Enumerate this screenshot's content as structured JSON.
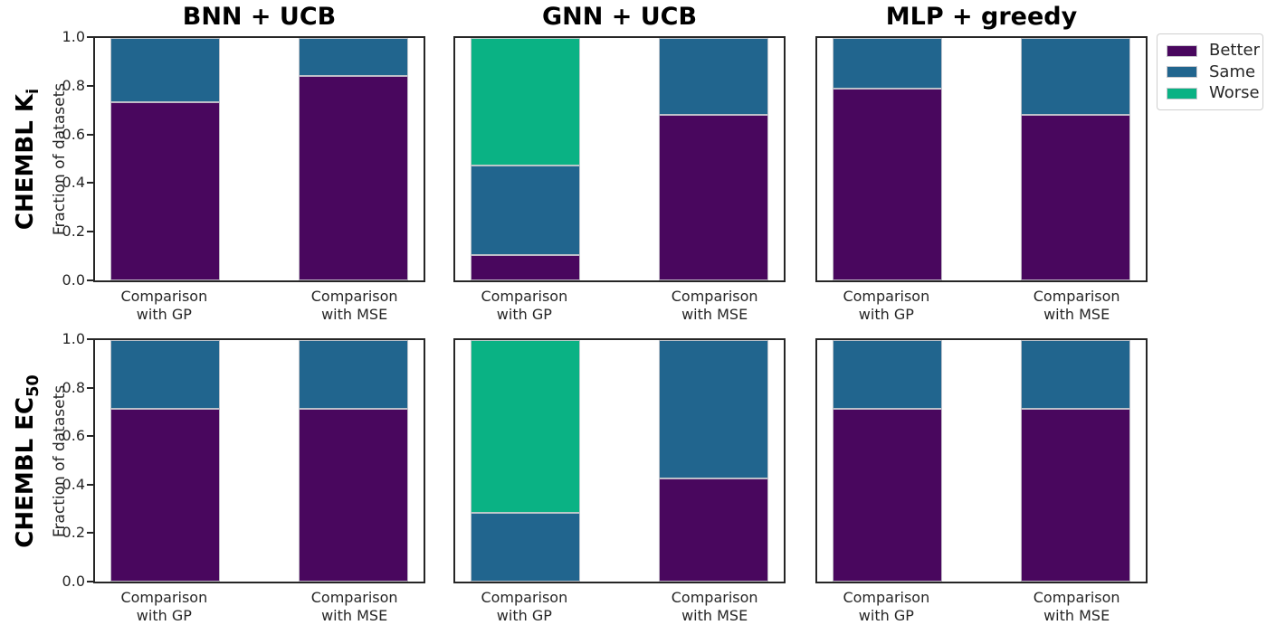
{
  "figure": {
    "background": "#ffffff",
    "axis_color": "#262626",
    "title_color": "#000000"
  },
  "chart_data": {
    "type": "bar",
    "stacked": true,
    "orientation": "vertical",
    "grid": false,
    "ylim": [
      0.0,
      1.0
    ],
    "ylabel": "Fraction of datasets",
    "ytick_labels": [
      "1.0",
      "0.8",
      "0.6",
      "0.4",
      "0.2",
      "0.0"
    ],
    "ytick_values": [
      1.0,
      0.8,
      0.6,
      0.4,
      0.2,
      0.0
    ],
    "column_titles": [
      "BNN + UCB",
      "GNN + UCB",
      "MLP + greedy"
    ],
    "row_labels": [
      {
        "text": "CHEMBL K",
        "subscript": "i"
      },
      {
        "text": "CHEMBL EC",
        "subscript": "50"
      }
    ],
    "categories": [
      "Comparison\nwith GP",
      "Comparison\nwith MSE"
    ],
    "legend": {
      "position": "upper right",
      "entries": [
        {
          "label": "Better",
          "color": "#49075e"
        },
        {
          "label": "Same",
          "color": "#21658e"
        },
        {
          "label": "Worse",
          "color": "#0ab284"
        }
      ]
    },
    "cells": [
      {
        "row": "CHEMBL Ki",
        "col": "BNN + UCB",
        "bars": [
          {
            "category": "Comparison with GP",
            "Better": 0.7368,
            "Same": 0.2632,
            "Worse": 0.0
          },
          {
            "category": "Comparison with MSE",
            "Better": 0.8421,
            "Same": 0.1579,
            "Worse": 0.0
          }
        ]
      },
      {
        "row": "CHEMBL Ki",
        "col": "GNN + UCB",
        "bars": [
          {
            "category": "Comparison with GP",
            "Better": 0.1053,
            "Same": 0.3684,
            "Worse": 0.5263
          },
          {
            "category": "Comparison with MSE",
            "Better": 0.6842,
            "Same": 0.3158,
            "Worse": 0.0
          }
        ]
      },
      {
        "row": "CHEMBL Ki",
        "col": "MLP + greedy",
        "bars": [
          {
            "category": "Comparison with GP",
            "Better": 0.7895,
            "Same": 0.2105,
            "Worse": 0.0
          },
          {
            "category": "Comparison with MSE",
            "Better": 0.6842,
            "Same": 0.3158,
            "Worse": 0.0
          }
        ]
      },
      {
        "row": "CHEMBL EC50",
        "col": "BNN + UCB",
        "bars": [
          {
            "category": "Comparison with GP",
            "Better": 0.7143,
            "Same": 0.2857,
            "Worse": 0.0
          },
          {
            "category": "Comparison with MSE",
            "Better": 0.7143,
            "Same": 0.2857,
            "Worse": 0.0
          }
        ]
      },
      {
        "row": "CHEMBL EC50",
        "col": "GNN + UCB",
        "bars": [
          {
            "category": "Comparison with GP",
            "Better": 0.0,
            "Same": 0.2857,
            "Worse": 0.7143
          },
          {
            "category": "Comparison with MSE",
            "Better": 0.4286,
            "Same": 0.5714,
            "Worse": 0.0
          }
        ]
      },
      {
        "row": "CHEMBL EC50",
        "col": "MLP + greedy",
        "bars": [
          {
            "category": "Comparison with GP",
            "Better": 0.7143,
            "Same": 0.2857,
            "Worse": 0.0
          },
          {
            "category": "Comparison with MSE",
            "Better": 0.7143,
            "Same": 0.2857,
            "Worse": 0.0
          }
        ]
      }
    ]
  }
}
